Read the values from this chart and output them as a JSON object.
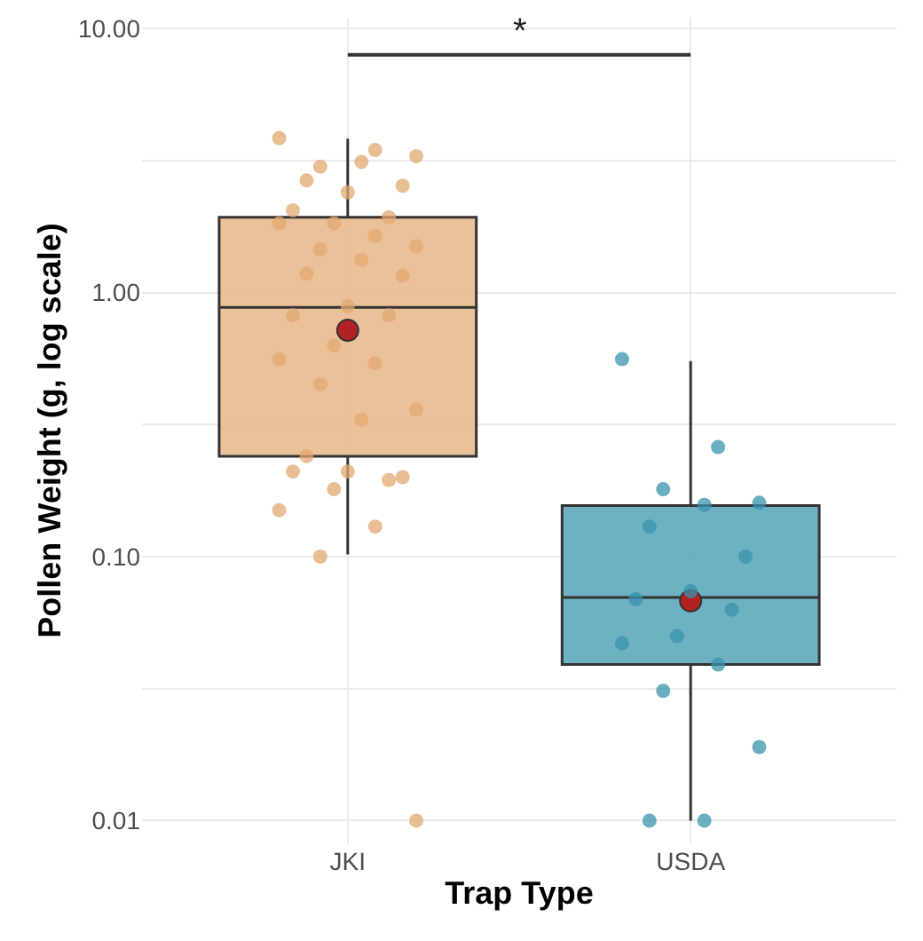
{
  "chart_data": {
    "type": "box",
    "xlabel": "Trap Type",
    "ylabel": "Pollen Weight (g, log scale)",
    "categories": [
      "JKI",
      "USDA"
    ],
    "colors": [
      "#e8bb8f",
      "#5ea8bd"
    ],
    "boxes": [
      {
        "low": 0.102,
        "q1": 0.24,
        "median": 0.88,
        "q3": 1.93,
        "high": 3.83,
        "mean": 0.72
      },
      {
        "low": 0.01,
        "q1": 0.039,
        "median": 0.07,
        "q3": 0.156,
        "high": 0.55,
        "mean": 0.068
      }
    ],
    "series": [
      {
        "type": "scatter",
        "color": "#e3a872",
        "x": [
          "JKI",
          "JKI",
          "JKI",
          "JKI",
          "JKI",
          "JKI",
          "JKI",
          "JKI",
          "JKI",
          "JKI",
          "JKI",
          "JKI",
          "JKI",
          "JKI",
          "JKI",
          "JKI",
          "JKI",
          "JKI",
          "JKI",
          "JKI",
          "JKI",
          "JKI",
          "JKI",
          "JKI",
          "JKI",
          "JKI",
          "JKI",
          "JKI",
          "JKI",
          "JKI",
          "JKI",
          "JKI",
          "JKI",
          "JKI",
          "JKI",
          "JKI",
          "JKI"
        ],
        "values": [
          3.85,
          3.47,
          3.0,
          3.29,
          3.13,
          2.66,
          2.54,
          2.4,
          2.05,
          1.93,
          1.83,
          1.83,
          1.64,
          1.46,
          1.5,
          1.33,
          1.18,
          1.16,
          0.89,
          0.82,
          0.82,
          0.63,
          0.56,
          0.54,
          0.45,
          0.36,
          0.33,
          0.24,
          0.2,
          0.21,
          0.21,
          0.195,
          0.18,
          0.15,
          0.13,
          0.1,
          0.01
        ]
      },
      {
        "type": "scatter",
        "color": "#3a93ad",
        "x": [
          "USDA",
          "USDA",
          "USDA",
          "USDA",
          "USDA",
          "USDA",
          "USDA",
          "USDA",
          "USDA",
          "USDA",
          "USDA",
          "USDA",
          "USDA",
          "USDA",
          "USDA",
          "USDA",
          "USDA"
        ],
        "values": [
          0.56,
          0.26,
          0.18,
          0.16,
          0.157,
          0.13,
          0.1,
          0.074,
          0.069,
          0.063,
          0.05,
          0.047,
          0.039,
          0.031,
          0.019,
          0.01,
          0.01
        ]
      }
    ],
    "log": "y",
    "ylim": [
      0.0082,
      11
    ],
    "yticks": [
      {
        "value": 0.01,
        "label": "0.01"
      },
      {
        "value": 0.0316,
        "label": null
      },
      {
        "value": 0.1,
        "label": "0.10"
      },
      {
        "value": 0.316,
        "label": null
      },
      {
        "value": 1,
        "label": "1.00"
      },
      {
        "value": 3.16,
        "label": null
      },
      {
        "value": 10,
        "label": "10.00"
      }
    ],
    "grid": true,
    "annotations": [
      "*"
    ]
  }
}
